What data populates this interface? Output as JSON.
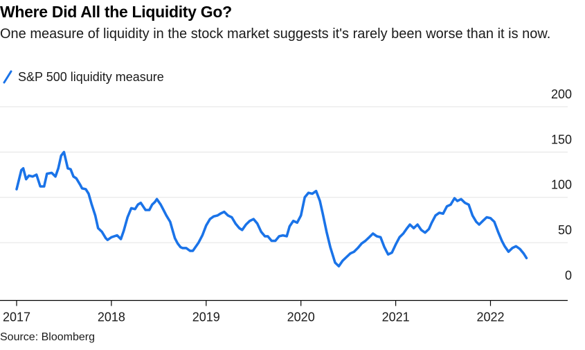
{
  "header": {
    "title": "Where Did All the Liquidity Go?",
    "subtitle": "One measure of liquidity in the stock market suggests it's rarely been worse than it is now."
  },
  "legend": {
    "label": "S&P 500 liquidity measure",
    "color": "#1a73e8"
  },
  "source": "Source: Bloomberg",
  "chart_data": {
    "type": "line",
    "title": "Where Did All the Liquidity Go?",
    "xlabel": "",
    "ylabel": "",
    "x_tick_labels": [
      "2017",
      "2018",
      "2019",
      "2020",
      "2021",
      "2022"
    ],
    "y_tick_labels": [
      "200",
      "150",
      "100",
      "50",
      "0"
    ],
    "y_ticks": [
      200,
      150,
      100,
      50,
      0
    ],
    "ylim": [
      -5,
      200
    ],
    "xlim": [
      2017.0,
      2022.8
    ],
    "grid": true,
    "y_axis_side": "right",
    "series": [
      {
        "name": "S&P 500 liquidity measure",
        "color": "#1a73e8",
        "x": [
          2017.0,
          2017.05,
          2017.07,
          2017.1,
          2017.13,
          2017.17,
          2017.21,
          2017.25,
          2017.29,
          2017.32,
          2017.37,
          2017.41,
          2017.44,
          2017.47,
          2017.5,
          2017.54,
          2017.57,
          2017.6,
          2017.63,
          2017.67,
          2017.69,
          2017.73,
          2017.76,
          2017.79,
          2017.83,
          2017.86,
          2017.9,
          2017.94,
          2017.96,
          2018.0,
          2018.06,
          2018.1,
          2018.13,
          2018.17,
          2018.21,
          2018.25,
          2018.28,
          2018.31,
          2018.36,
          2018.4,
          2018.43,
          2018.46,
          2018.48,
          2018.52,
          2018.55,
          2018.58,
          2018.62,
          2018.65,
          2018.67,
          2018.7,
          2018.73,
          2018.75,
          2018.79,
          2018.83,
          2018.86,
          2018.88,
          2018.92,
          2018.96,
          2019.0,
          2019.04,
          2019.08,
          2019.12,
          2019.15,
          2019.19,
          2019.23,
          2019.25,
          2019.27,
          2019.31,
          2019.35,
          2019.38,
          2019.42,
          2019.46,
          2019.5,
          2019.54,
          2019.58,
          2019.62,
          2019.65,
          2019.69,
          2019.73,
          2019.77,
          2019.81,
          2019.85,
          2019.88,
          2019.92,
          2019.96,
          2020.0,
          2020.04,
          2020.08,
          2020.12,
          2020.16,
          2020.2,
          2020.23,
          2020.27,
          2020.31,
          2020.36,
          2020.4,
          2020.44,
          2020.48,
          2020.52,
          2020.56,
          2020.6,
          2020.64,
          2020.68,
          2020.72,
          2020.76,
          2020.8,
          2020.84,
          2020.88,
          2020.92,
          2020.96,
          2021.0,
          2021.04,
          2021.08,
          2021.12,
          2021.15,
          2021.19,
          2021.23,
          2021.27,
          2021.31,
          2021.35,
          2021.38,
          2021.42,
          2021.46,
          2021.5,
          2021.54,
          2021.58,
          2021.62,
          2021.65,
          2021.69,
          2021.73,
          2021.77,
          2021.81,
          2021.85,
          2021.88,
          2021.92,
          2021.96,
          2022.0,
          2022.04,
          2022.08,
          2022.12,
          2022.15,
          2022.19,
          2022.23,
          2022.27,
          2022.31,
          2022.35,
          2022.38
        ],
        "y": [
          109,
          130,
          132,
          120,
          124,
          123,
          125,
          112,
          112,
          126,
          127,
          123,
          132,
          146,
          150,
          132,
          131,
          123,
          121,
          114,
          110,
          109,
          104,
          93,
          80,
          66,
          62,
          55,
          53,
          56,
          58,
          54,
          63,
          78,
          88,
          87,
          92,
          94,
          86,
          86,
          92,
          95,
          98,
          92,
          86,
          80,
          73,
          62,
          55,
          49,
          45,
          44,
          44,
          41,
          41,
          44,
          50,
          58,
          69,
          76,
          79,
          80,
          82,
          84,
          80,
          79,
          78,
          71,
          66,
          64,
          70,
          74,
          76,
          71,
          62,
          57,
          57,
          52,
          52,
          57,
          58,
          57,
          68,
          74,
          72,
          80,
          100,
          105,
          104,
          107,
          96,
          82,
          62,
          45,
          28,
          24,
          30,
          34,
          38,
          40,
          44,
          49,
          52,
          56,
          60,
          57,
          56,
          45,
          37,
          39,
          48,
          56,
          60,
          66,
          70,
          66,
          70,
          64,
          61,
          65,
          72,
          80,
          83,
          82,
          90,
          92,
          99,
          96,
          98,
          94,
          92,
          80,
          73,
          70,
          74,
          78,
          77,
          73,
          62,
          52,
          46,
          40,
          44,
          46,
          43,
          38,
          33
        ],
        "description": "Values read visually from the chart"
      }
    ]
  }
}
